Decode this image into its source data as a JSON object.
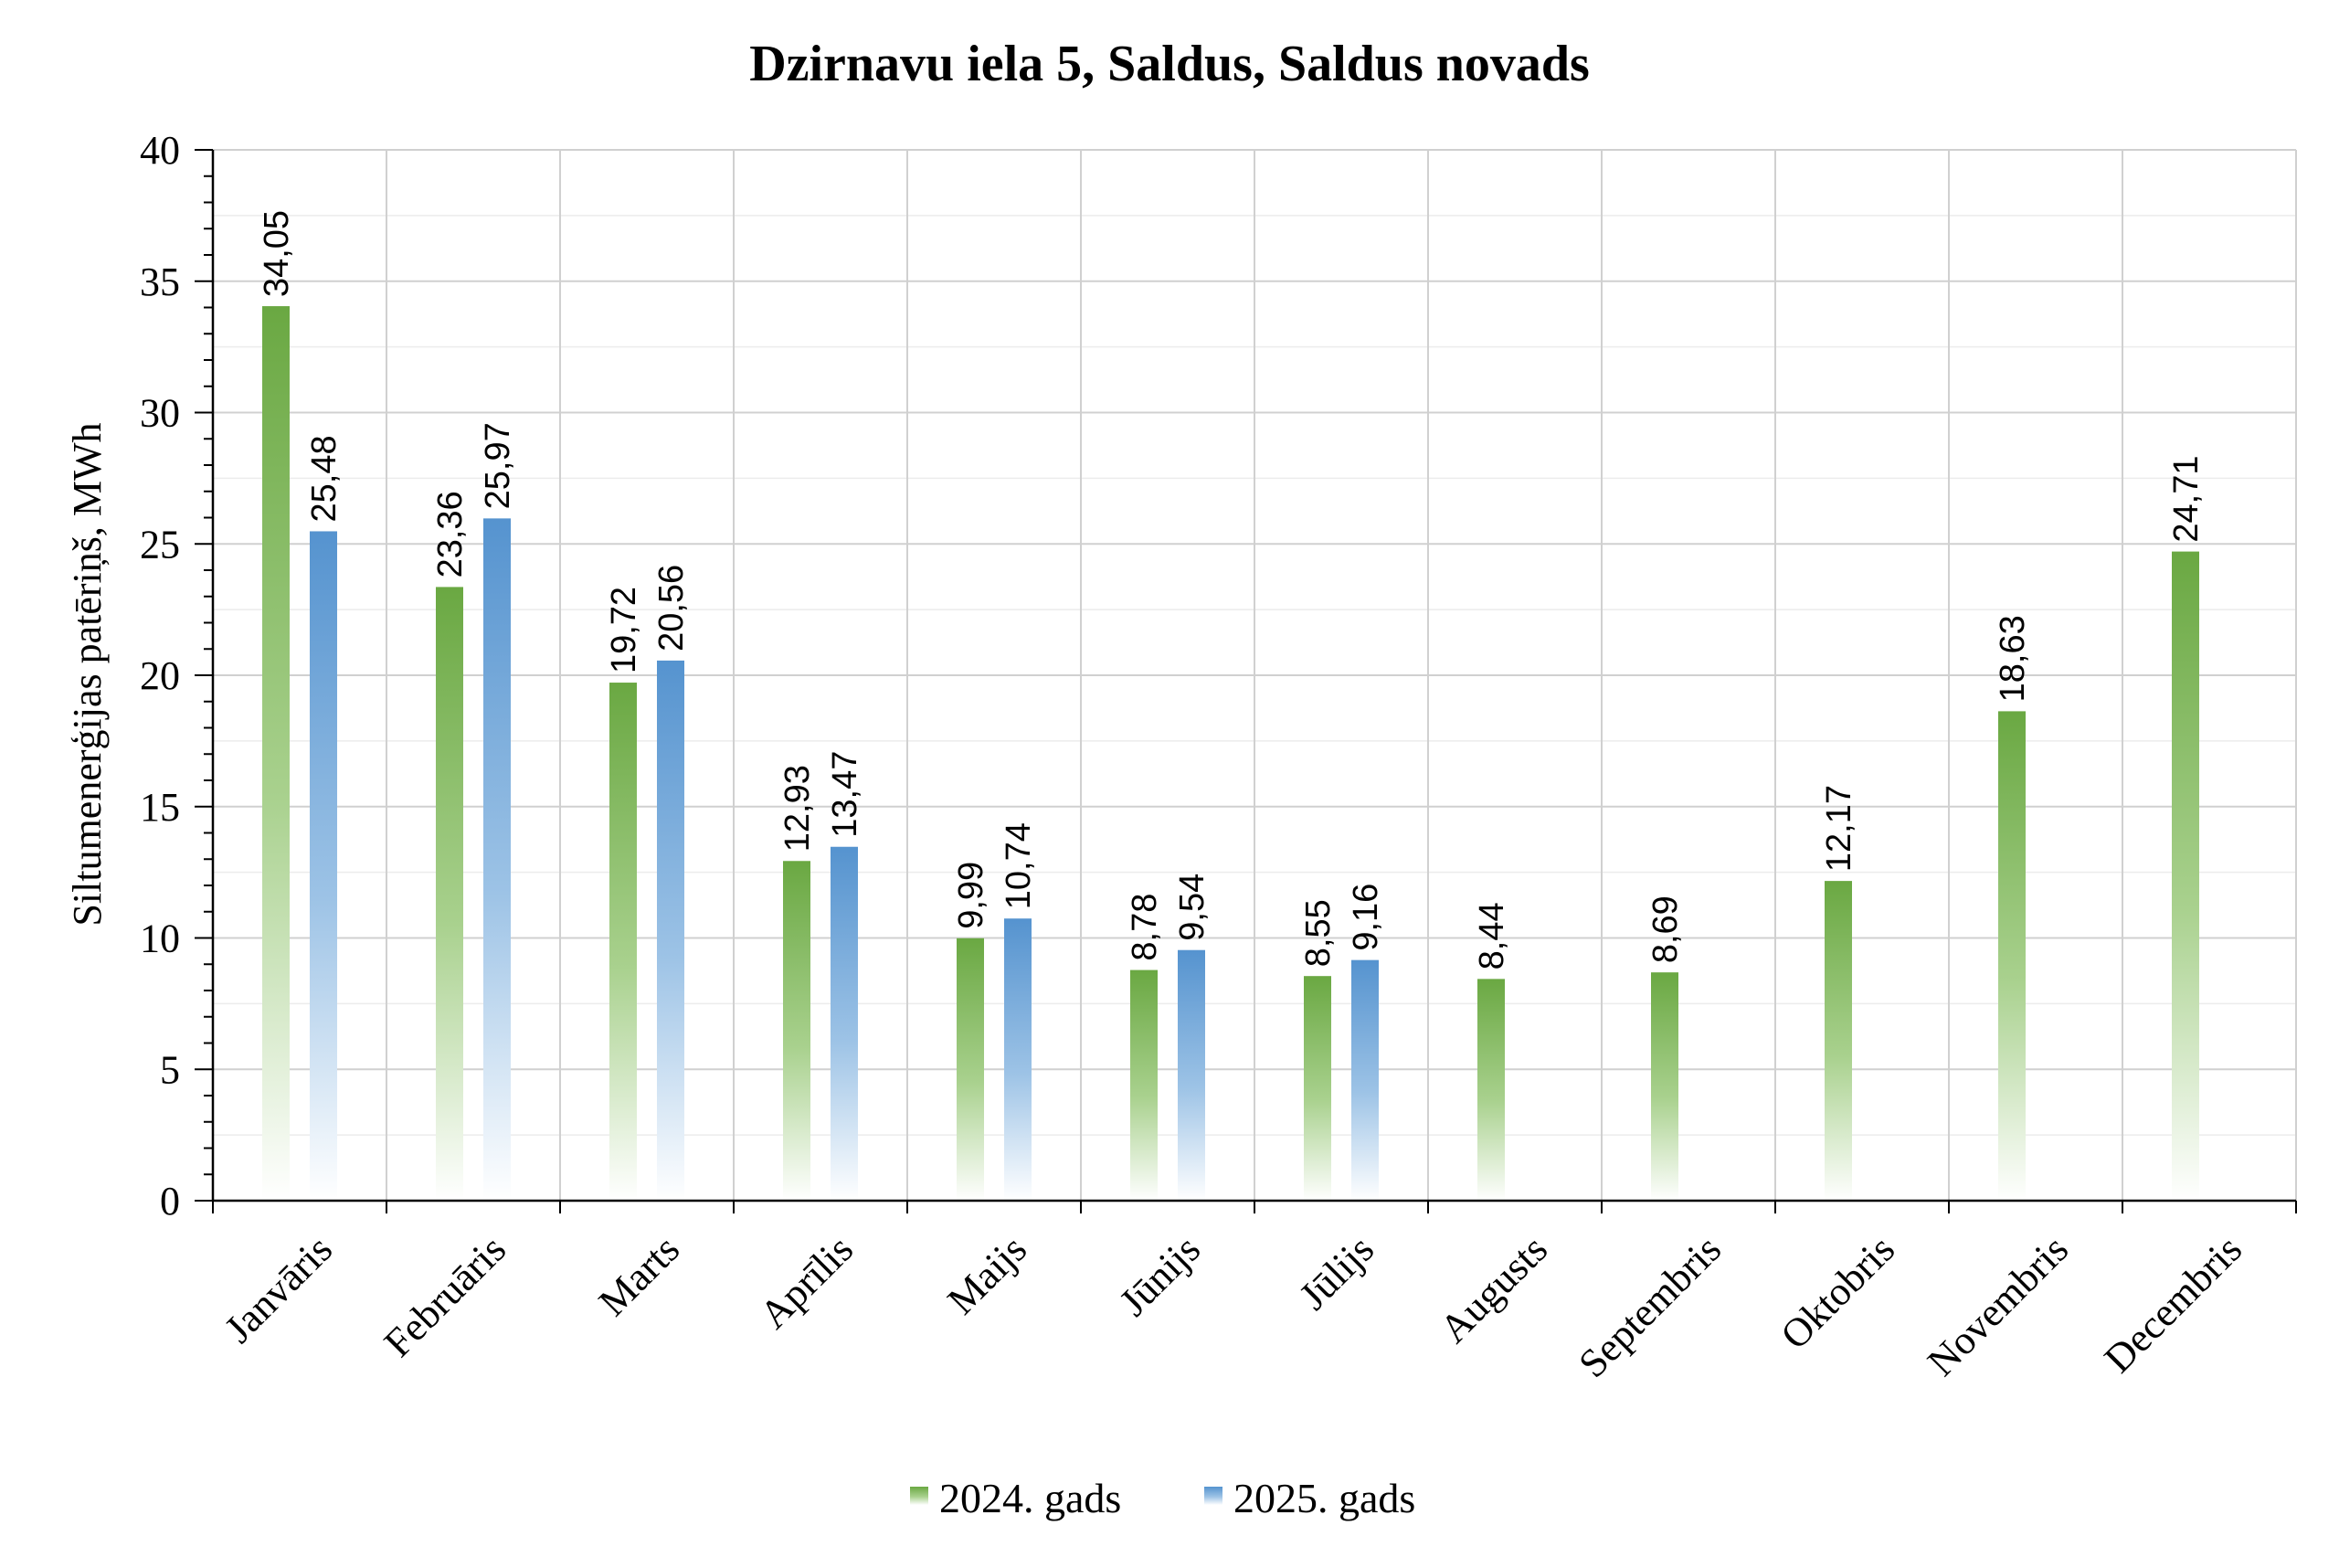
{
  "chart_data": {
    "type": "bar",
    "title": "Dzirnavu iela 5, Saldus, Saldus novads",
    "xlabel": "",
    "ylabel": "Siltumenerģijas patēriņš, MWh",
    "ylim": [
      0,
      40
    ],
    "yticks": [
      "0",
      "5",
      "10",
      "15",
      "20",
      "25",
      "30",
      "35",
      "40"
    ],
    "grid": true,
    "legend_position": "bottom",
    "categories": [
      "Janvāris",
      "Februāris",
      "Marts",
      "Aprīlis",
      "Maijs",
      "Jūnijs",
      "Jūlijs",
      "Augusts",
      "Septembris",
      "Oktobris",
      "Novembris",
      "Decembris"
    ],
    "series": [
      {
        "name": "2024. gads",
        "color": "#70ad47",
        "values": [
          34.05,
          23.36,
          19.72,
          12.93,
          9.99,
          8.78,
          8.55,
          8.44,
          8.69,
          12.17,
          18.63,
          24.71
        ],
        "labels": [
          "34,05",
          "23,36",
          "19,72",
          "12,93",
          "9,99",
          "8,78",
          "8,55",
          "8,44",
          "8,69",
          "12,17",
          "18,63",
          "24,71"
        ]
      },
      {
        "name": "2025. gads",
        "color": "#5b9bd5",
        "values": [
          25.48,
          25.97,
          20.56,
          13.47,
          10.74,
          9.54,
          9.16,
          null,
          null,
          null,
          null,
          null
        ],
        "labels": [
          "25,48",
          "25,97",
          "20,56",
          "13,47",
          "10,74",
          "9,54",
          "9,16",
          null,
          null,
          null,
          null,
          null
        ]
      }
    ]
  }
}
